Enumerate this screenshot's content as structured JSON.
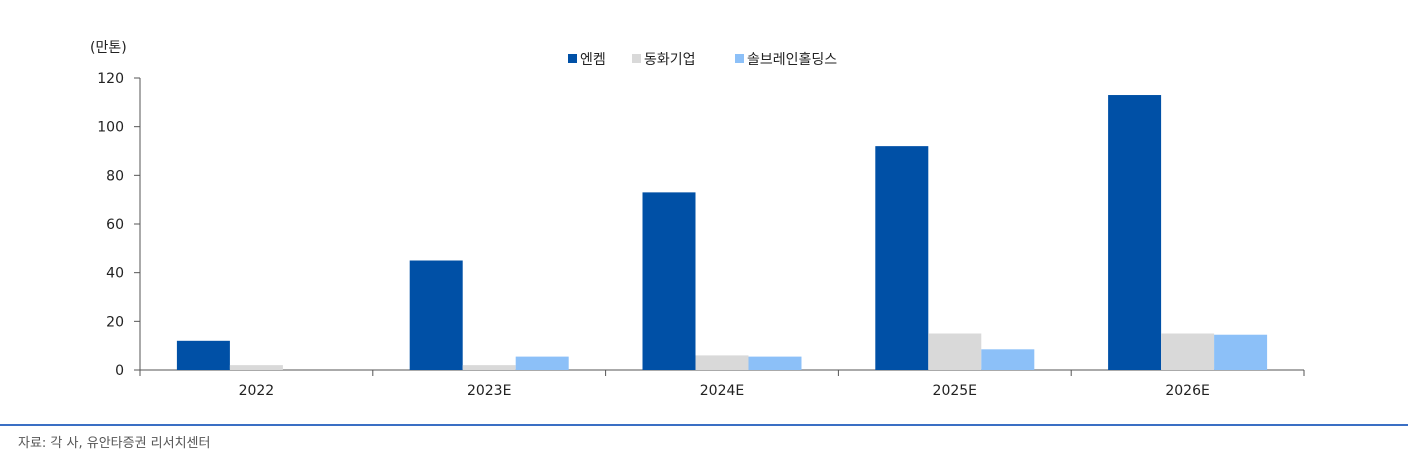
{
  "chart_data": {
    "type": "bar",
    "unit_label": "(만톤)",
    "categories": [
      "2022",
      "2023E",
      "2024E",
      "2025E",
      "2026E"
    ],
    "series": [
      {
        "name": "엔켐",
        "color": "#0050A6",
        "values": [
          12,
          45,
          73,
          92,
          113
        ]
      },
      {
        "name": "동화기업",
        "color": "#D9D9D9",
        "values": [
          2,
          2,
          6,
          15,
          15
        ]
      },
      {
        "name": "솔브레인홀딩스",
        "color": "#8CC0F8",
        "values": [
          0,
          5.5,
          5.5,
          8.5,
          14.5
        ]
      }
    ],
    "ylim": [
      0,
      120
    ],
    "yticks": [
      0,
      20,
      40,
      60,
      80,
      100,
      120
    ],
    "legend_position": "top-center",
    "grid": false
  },
  "source": "자료: 각 사, 유안타증권 리서치센터"
}
